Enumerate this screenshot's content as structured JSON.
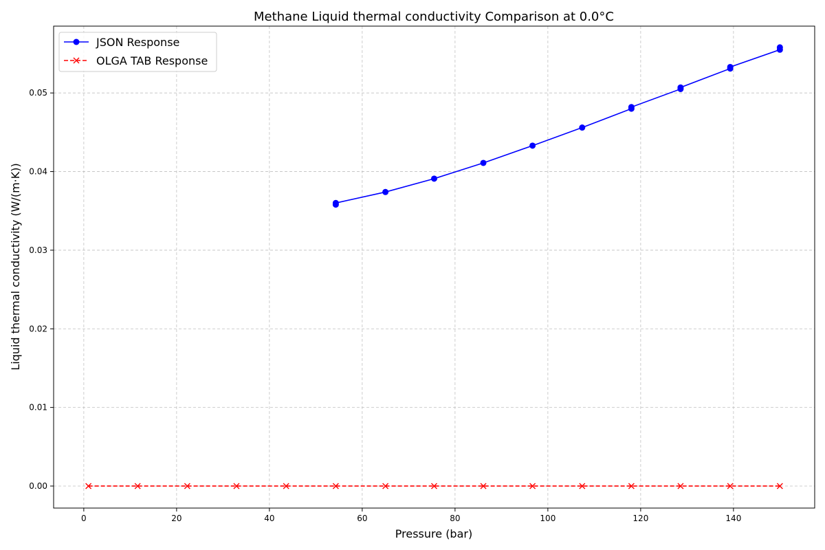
{
  "chart_data": {
    "type": "line",
    "title": "Methane Liquid thermal conductivity Comparison at 0.0°C",
    "xlabel": "Pressure (bar)",
    "ylabel": "Liquid thermal conductivity (W/(m·K))",
    "xlim": [
      -6.5,
      157.5
    ],
    "ylim": [
      -0.0028,
      0.0585
    ],
    "xticks": [
      0,
      20,
      40,
      60,
      80,
      100,
      120,
      140
    ],
    "yticks": [
      0.0,
      0.01,
      0.02,
      0.03,
      0.04,
      0.05
    ],
    "ytick_labels": [
      "0.00",
      "0.01",
      "0.02",
      "0.03",
      "0.04",
      "0.05"
    ],
    "grid": true,
    "legend_position": "top-left",
    "series": [
      {
        "name": "JSON Response",
        "color": "#0000ff",
        "marker": "circle",
        "line_style": "solid",
        "x": [
          54.3,
          54.3,
          65.0,
          75.5,
          86.1,
          96.7,
          107.4,
          118.0,
          118.0,
          128.6,
          128.6,
          139.3,
          139.3,
          150.0,
          150.0
        ],
        "y": [
          0.0358,
          0.036,
          0.0374,
          0.0391,
          0.0411,
          0.0433,
          0.0456,
          0.048,
          0.0482,
          0.0505,
          0.0507,
          0.0531,
          0.0533,
          0.0555,
          0.0558
        ]
      },
      {
        "name": "OLGA TAB Response",
        "color": "#ff0000",
        "marker": "x",
        "line_style": "dashed",
        "x": [
          1.0,
          11.6,
          22.3,
          32.9,
          43.6,
          54.3,
          65.0,
          75.5,
          86.1,
          96.7,
          107.4,
          118.0,
          128.6,
          139.3,
          150.0
        ],
        "y": [
          0,
          0,
          0,
          0,
          0,
          0,
          0,
          0,
          0,
          0,
          0,
          0,
          0,
          0,
          0
        ]
      }
    ]
  }
}
